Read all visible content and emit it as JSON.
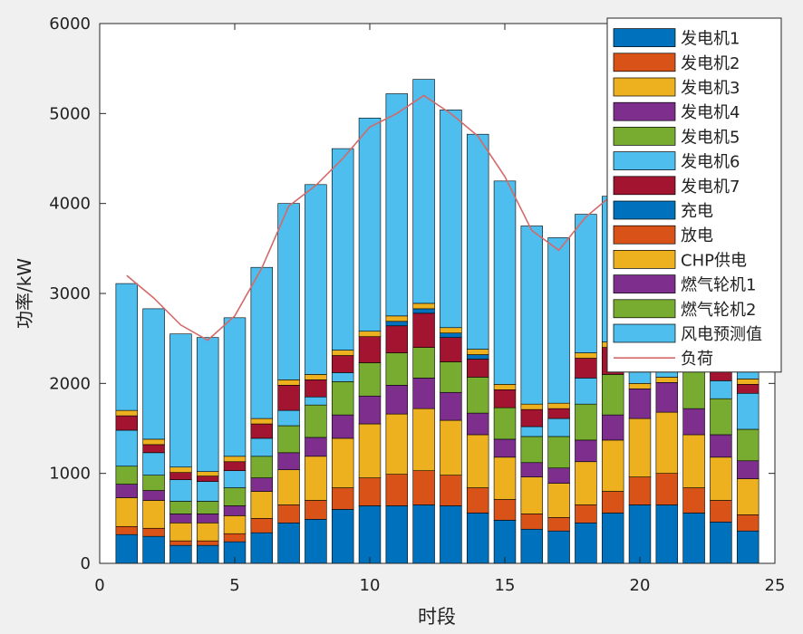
{
  "chart_data": {
    "type": "bar",
    "stacked": true,
    "xlabel": "时段",
    "ylabel": "功率/kW",
    "xlim": [
      0,
      25
    ],
    "ylim": [
      0,
      6000
    ],
    "xticks": [
      0,
      5,
      10,
      15,
      20,
      25
    ],
    "yticks": [
      0,
      1000,
      2000,
      3000,
      4000,
      5000,
      6000
    ],
    "legend_position": "top-right",
    "categories": [
      1,
      2,
      3,
      4,
      5,
      6,
      7,
      8,
      9,
      10,
      11,
      12,
      13,
      14,
      15,
      16,
      17,
      18,
      19,
      20,
      21,
      22,
      23,
      24
    ],
    "series": [
      {
        "name": "发电机1",
        "color": "#0072bd",
        "values": [
          320,
          300,
          200,
          200,
          240,
          340,
          450,
          490,
          600,
          640,
          640,
          650,
          640,
          560,
          480,
          380,
          360,
          450,
          560,
          650,
          650,
          560,
          460,
          360
        ]
      },
      {
        "name": "发电机2",
        "color": "#d95319",
        "values": [
          90,
          90,
          50,
          50,
          90,
          160,
          200,
          210,
          240,
          310,
          350,
          380,
          340,
          280,
          230,
          170,
          150,
          200,
          240,
          310,
          350,
          280,
          240,
          180
        ]
      },
      {
        "name": "发电机3",
        "color": "#edb120",
        "values": [
          320,
          310,
          200,
          200,
          200,
          300,
          390,
          490,
          550,
          600,
          670,
          690,
          610,
          590,
          470,
          410,
          380,
          480,
          570,
          650,
          680,
          590,
          480,
          400
        ]
      },
      {
        "name": "发电机4",
        "color": "#7e2f8e",
        "values": [
          150,
          110,
          100,
          100,
          110,
          150,
          190,
          210,
          260,
          310,
          320,
          340,
          310,
          240,
          200,
          160,
          170,
          240,
          280,
          330,
          330,
          290,
          250,
          200
        ]
      },
      {
        "name": "发电机5",
        "color": "#77ac30",
        "values": [
          200,
          170,
          140,
          140,
          200,
          240,
          300,
          360,
          370,
          370,
          360,
          340,
          340,
          400,
          350,
          290,
          350,
          400,
          450,
          0,
          0,
          450,
          400,
          350
        ]
      },
      {
        "name": "发电机6",
        "color": "#4dbeee",
        "values": [
          400,
          250,
          240,
          220,
          190,
          200,
          170,
          90,
          100,
          0,
          0,
          0,
          0,
          0,
          0,
          110,
          200,
          290,
          0,
          0,
          0,
          0,
          200,
          400
        ]
      },
      {
        "name": "发电机7",
        "color": "#a2142f",
        "values": [
          160,
          90,
          80,
          60,
          100,
          160,
          280,
          190,
          190,
          290,
          300,
          380,
          270,
          200,
          200,
          190,
          110,
          220,
          300,
          0,
          0,
          0,
          200,
          100
        ]
      },
      {
        "name": "充电",
        "color": "#0072bd",
        "values": [
          0,
          0,
          0,
          0,
          0,
          0,
          0,
          0,
          0,
          0,
          50,
          50,
          50,
          50,
          0,
          0,
          0,
          0,
          0,
          0,
          0,
          0,
          0,
          0
        ]
      },
      {
        "name": "放电",
        "color": "#d95319",
        "values": [
          0,
          0,
          0,
          0,
          0,
          0,
          0,
          0,
          0,
          0,
          0,
          0,
          0,
          0,
          0,
          0,
          0,
          0,
          0,
          0,
          0,
          0,
          0,
          0
        ]
      },
      {
        "name": "CHP供电",
        "color": "#edb120",
        "values": [
          60,
          60,
          60,
          50,
          60,
          60,
          60,
          60,
          60,
          60,
          60,
          60,
          60,
          60,
          60,
          60,
          60,
          60,
          60,
          60,
          60,
          60,
          60,
          60
        ]
      },
      {
        "name": "燃气轮机1",
        "color": "#7e2f8e",
        "values": [
          0,
          0,
          0,
          0,
          0,
          0,
          0,
          0,
          0,
          0,
          0,
          0,
          0,
          0,
          0,
          0,
          0,
          0,
          0,
          0,
          0,
          0,
          0,
          0
        ]
      },
      {
        "name": "燃气轮机2",
        "color": "#77ac30",
        "values": [
          0,
          0,
          0,
          0,
          0,
          0,
          0,
          0,
          0,
          0,
          0,
          0,
          0,
          0,
          0,
          0,
          0,
          0,
          0,
          0,
          0,
          0,
          0,
          0
        ]
      },
      {
        "name": "风电预测值",
        "color": "#4dbeee",
        "values": [
          1410,
          1450,
          1480,
          1490,
          1540,
          1680,
          1960,
          2110,
          2240,
          2370,
          2470,
          2490,
          2420,
          2390,
          2260,
          1980,
          1840,
          1540,
          1620,
          1500,
          1500,
          1450,
          1420,
          1460
        ]
      }
    ],
    "line": {
      "name": "负荷",
      "color": "#d36a6a",
      "values": [
        3200,
        2950,
        2650,
        2480,
        2750,
        3280,
        3970,
        4200,
        4500,
        4850,
        5000,
        5200,
        5000,
        4750,
        4300,
        3700,
        3480,
        3850,
        4100,
        4000,
        3950,
        3900,
        3800,
        3900
      ]
    }
  }
}
